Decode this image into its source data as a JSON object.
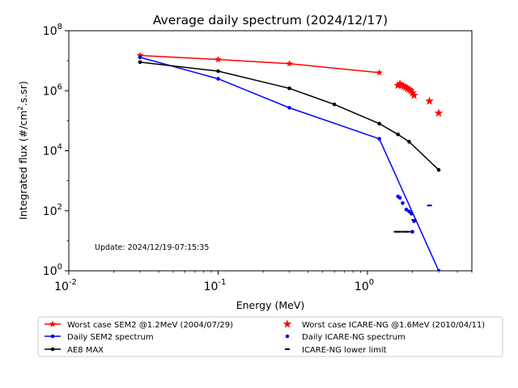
{
  "chart_data": {
    "type": "line",
    "title": "Average daily spectrum (2024/12/17)",
    "xlabel": "Energy (MeV)",
    "ylabel_main": "Integrated flux (#/cm",
    "ylabel_sup": "2",
    "ylabel_end": ".s.sr)",
    "xscale": "log",
    "yscale": "log",
    "xlim": [
      0.01,
      5
    ],
    "ylim": [
      1,
      100000000
    ],
    "x_ticks": [
      {
        "value": 0.01,
        "base": "10",
        "exp": "-2"
      },
      {
        "value": 0.1,
        "base": "10",
        "exp": "-1"
      },
      {
        "value": 1,
        "base": "10",
        "exp": "0"
      }
    ],
    "y_ticks": [
      {
        "value": 1,
        "base": "10",
        "exp": "0"
      },
      {
        "value": 100,
        "base": "10",
        "exp": "2"
      },
      {
        "value": 10000,
        "base": "10",
        "exp": "4"
      },
      {
        "value": 1000000,
        "base": "10",
        "exp": "6"
      },
      {
        "value": 100000000,
        "base": "10",
        "exp": "8"
      }
    ],
    "annotation": "Update: 2024/12/19-07:15:35",
    "legend_placement": "bottom",
    "series": [
      {
        "name": "Worst case SEM2 @1.2MeV (2004/07/29)",
        "style": "line-star",
        "color": "#ff0000",
        "x": [
          0.03,
          0.1,
          0.3,
          1.2
        ],
        "y": [
          15000000,
          11000000,
          8000000,
          4000000
        ]
      },
      {
        "name": "Daily SEM2 spectrum",
        "style": "line-dot",
        "color": "#0000ff",
        "x": [
          0.03,
          0.1,
          0.3,
          1.2,
          3.0
        ],
        "y": [
          13000000,
          2500000,
          270000,
          25000,
          1
        ]
      },
      {
        "name": "AE8 MAX",
        "style": "line-dot",
        "color": "#000000",
        "x": [
          0.03,
          0.1,
          0.3,
          0.6,
          1.2,
          1.6,
          1.9,
          3.0
        ],
        "y": [
          9000000,
          4500000,
          1200000,
          350000,
          80000,
          35000,
          20000,
          2300
        ]
      },
      {
        "name": "Worst case ICARE-NG @1.6MeV (2010/04/11)",
        "style": "star",
        "color": "#ff0000",
        "x": [
          1.6,
          1.65,
          1.7,
          1.75,
          1.8,
          1.85,
          1.9,
          1.95,
          2.0,
          2.05,
          2.6,
          3.0
        ],
        "y": [
          1500000,
          1700000,
          1500000,
          1400000,
          1300000,
          1200000,
          1100000,
          1000000,
          850000,
          700000,
          450000,
          180000
        ]
      },
      {
        "name": "Daily ICARE-NG spectrum",
        "style": "dot",
        "color": "#0000ff",
        "x": [
          1.6,
          1.65,
          1.72,
          1.82,
          1.9,
          1.97
        ],
        "y": [
          300,
          270,
          180,
          110,
          95,
          80
        ]
      },
      {
        "name": "ICARE-NG lower limit",
        "style": "dash",
        "color": "#000000",
        "x": [
          1.6,
          1.8,
          2.05,
          2.6
        ],
        "y": [
          20,
          20,
          50,
          150
        ],
        "x_lo": [
          1.5,
          null,
          null,
          null
        ],
        "x_hi": [
          null,
          null,
          null,
          null
        ]
      }
    ],
    "extra_lines": [
      {
        "color": "#000000",
        "x": [
          1.5,
          1.97
        ],
        "y": [
          20,
          20
        ]
      },
      {
        "color": "#0000ff",
        "x": [
          2.02,
          2.1
        ],
        "y": [
          50,
          50
        ]
      },
      {
        "color": "#0000ff",
        "x": [
          2.55,
          2.68
        ],
        "y": [
          150,
          150
        ]
      }
    ],
    "extra_points": [
      {
        "color": "#0000ff",
        "x": 2.0,
        "y": 20
      },
      {
        "color": "#0000ff",
        "x": 2.05,
        "y": 45
      }
    ]
  }
}
